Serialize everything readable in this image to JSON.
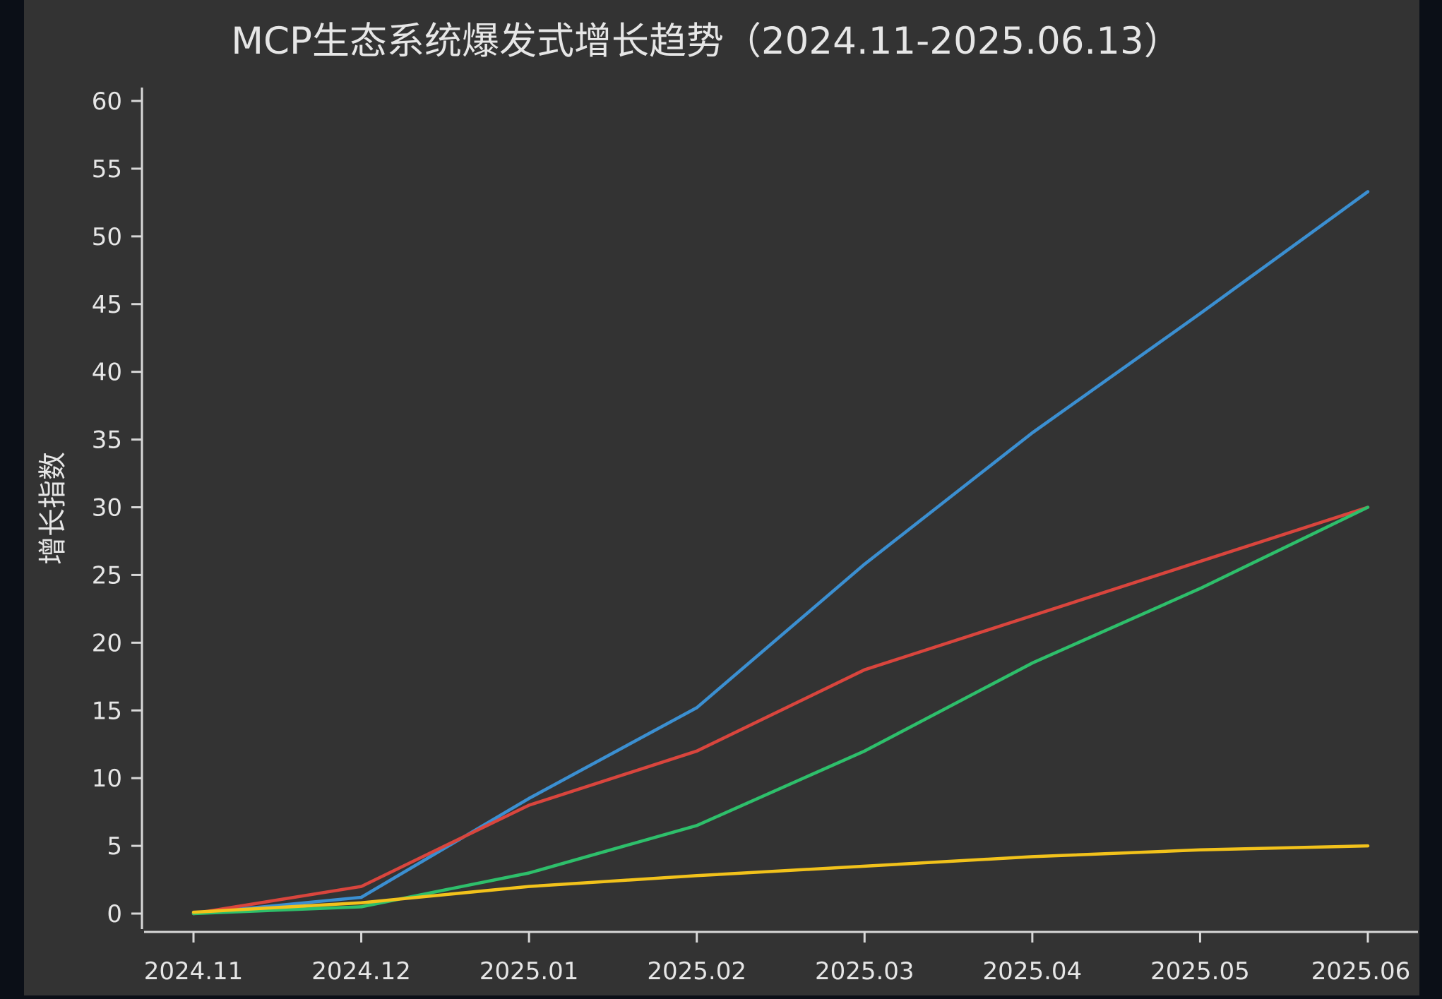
{
  "page": {
    "outer_background": "#0b0f17",
    "panel_background": "#333333",
    "text_color": "#e6e6e6",
    "axis_color": "#d8d8d8"
  },
  "chart_data": {
    "type": "line",
    "title": "MCP生态系统爆发式增长趋势（2024.11-2025.06.13）",
    "xlabel": "",
    "ylabel": "增长指数",
    "categories": [
      "2024.11",
      "2024.12",
      "2025.01",
      "2025.02",
      "2025.03",
      "2025.04",
      "2025.05",
      "2025.06"
    ],
    "ylim": [
      0,
      60
    ],
    "yticks": [
      0,
      5,
      10,
      15,
      20,
      25,
      30,
      35,
      40,
      45,
      50,
      55,
      60
    ],
    "grid": false,
    "legend": "none",
    "series": [
      {
        "color": "#3b8fd1",
        "values": [
          0,
          1.2,
          8.5,
          15.2,
          25.8,
          35.5,
          44.3,
          53.3
        ]
      },
      {
        "color": "#d9453d",
        "values": [
          0,
          2,
          8,
          12,
          18,
          22,
          26,
          30
        ]
      },
      {
        "color": "#2ebf6b",
        "values": [
          0,
          0.5,
          3,
          6.5,
          12,
          18.5,
          24,
          30
        ]
      },
      {
        "color": "#f2c21b",
        "values": [
          0.1,
          0.8,
          2,
          2.8,
          3.5,
          4.2,
          4.7,
          5
        ]
      }
    ]
  }
}
